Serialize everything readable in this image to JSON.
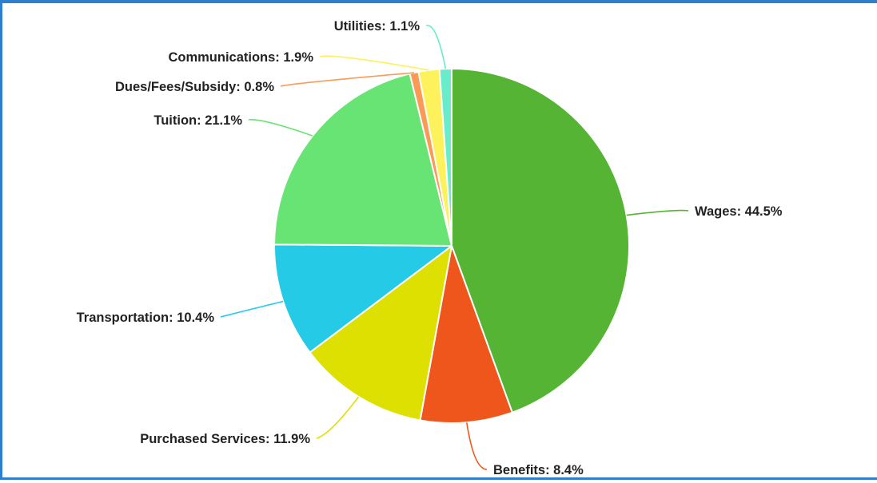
{
  "chart_data": {
    "type": "pie",
    "title": "",
    "slices": [
      {
        "label": "Wages: 44.5%",
        "name": "Wages",
        "value": 44.5,
        "color": "#56b434"
      },
      {
        "label": "Benefits: 8.4%",
        "name": "Benefits",
        "value": 8.4,
        "color": "#ef561c"
      },
      {
        "label": "Purchased Services: 11.9%",
        "name": "Purchased Services",
        "value": 11.9,
        "color": "#dde000"
      },
      {
        "label": "Transportation: 10.4%",
        "name": "Transportation",
        "value": 10.4,
        "color": "#25cbe6"
      },
      {
        "label": "Tuition: 21.1%",
        "name": "Tuition",
        "value": 21.1,
        "color": "#67e473"
      },
      {
        "label": "Dues/Fees/Subsidy: 0.8%",
        "name": "Dues/Fees/Subsidy",
        "value": 0.8,
        "color": "#fb9a55"
      },
      {
        "label": "Communications: 1.9%",
        "name": "Communications",
        "value": 1.9,
        "color": "#fdf25b"
      },
      {
        "label": "Utilities: 1.1%",
        "name": "Utilities",
        "value": 1.1,
        "color": "#68ecc9"
      }
    ],
    "legend": "none",
    "labels": "outside-with-leader-lines"
  }
}
